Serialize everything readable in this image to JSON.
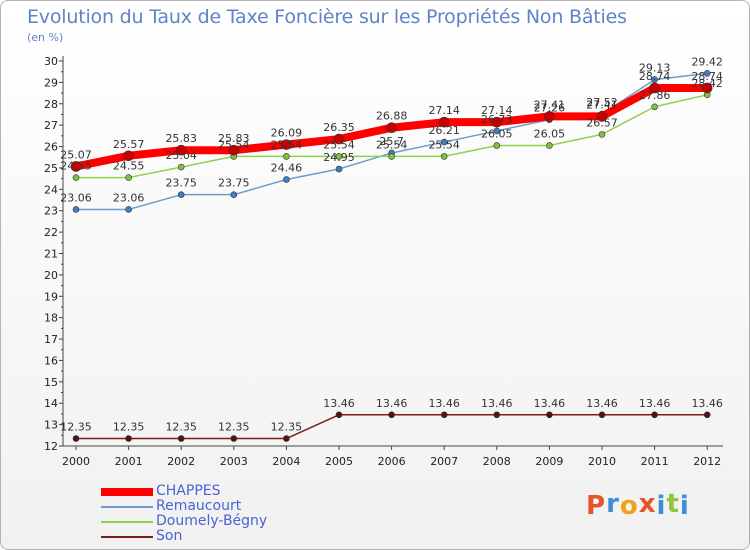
{
  "chart_data": {
    "type": "line",
    "title": "Evolution du Taux de Taxe Foncière sur les Propriétés Non Bâties",
    "subtitle": "(en %)",
    "x": [
      "2000",
      "2001",
      "2002",
      "2003",
      "2004",
      "2005",
      "2006",
      "2007",
      "2008",
      "2009",
      "2010",
      "2011",
      "2012"
    ],
    "ylim": [
      12,
      30
    ],
    "yticks": [
      "12",
      "13",
      "14",
      "15",
      "16",
      "17",
      "18",
      "19",
      "20",
      "21",
      "22",
      "23",
      "24",
      "25",
      "26",
      "27",
      "28",
      "29",
      "30"
    ],
    "grid": false,
    "legend_position": "bottom-left",
    "series": [
      {
        "name": "CHAPPES",
        "color": "#ff0000",
        "values": [
          25.07,
          25.57,
          25.83,
          25.83,
          26.09,
          26.35,
          26.88,
          27.14,
          27.14,
          27.41,
          27.41,
          28.74,
          28.74
        ],
        "labels": [
          "25.07",
          "25.57",
          "25.83",
          "25.83",
          "26.09",
          "26.35",
          "26.88",
          "27.14",
          "27.14",
          "27.41",
          "27.41",
          "28.74",
          "28.74"
        ]
      },
      {
        "name": "Remaucourt",
        "color": "#6e9ccf",
        "values": [
          23.06,
          23.06,
          23.75,
          23.75,
          24.46,
          24.95,
          25.7,
          26.21,
          26.73,
          27.26,
          27.52,
          29.13,
          29.42
        ],
        "labels": [
          "23.06",
          "23.06",
          "23.75",
          "23.75",
          "24.46",
          "24.95",
          "25.7",
          "26.21",
          "26.73",
          "27.26",
          "27.52",
          "29.13",
          "29.42"
        ]
      },
      {
        "name": "Doumely-Bégny",
        "color": "#8fd24a",
        "values": [
          24.55,
          24.55,
          25.04,
          25.54,
          25.54,
          25.54,
          25.54,
          25.54,
          26.05,
          26.05,
          26.57,
          27.86,
          28.42
        ],
        "labels": [
          "24.55",
          "24.55",
          "25.04",
          "25.54",
          "25.54",
          "25.54",
          "25.54",
          "25.54",
          "26.05",
          "26.05",
          "26.57",
          "27.86",
          "28.42"
        ]
      },
      {
        "name": "Son",
        "color": "#7a1f1f",
        "values": [
          12.35,
          12.35,
          12.35,
          12.35,
          12.35,
          13.46,
          13.46,
          13.46,
          13.46,
          13.46,
          13.46,
          13.46,
          13.46
        ],
        "labels": [
          "12.35",
          "12.35",
          "12.35",
          "12.35",
          "12.35",
          "13.46",
          "13.46",
          "13.46",
          "13.46",
          "13.46",
          "13.46",
          "13.46",
          "13.46"
        ]
      }
    ]
  },
  "logo": {
    "text": "Proxiti",
    "letters": [
      "P",
      "r",
      "o",
      "x",
      "i",
      "t",
      "i"
    ],
    "colors": [
      "#e8542a",
      "#3f8fd6",
      "#f0a21c",
      "#e8542a",
      "#3f8fd6",
      "#8cc63f",
      "#3f8fd6"
    ]
  }
}
